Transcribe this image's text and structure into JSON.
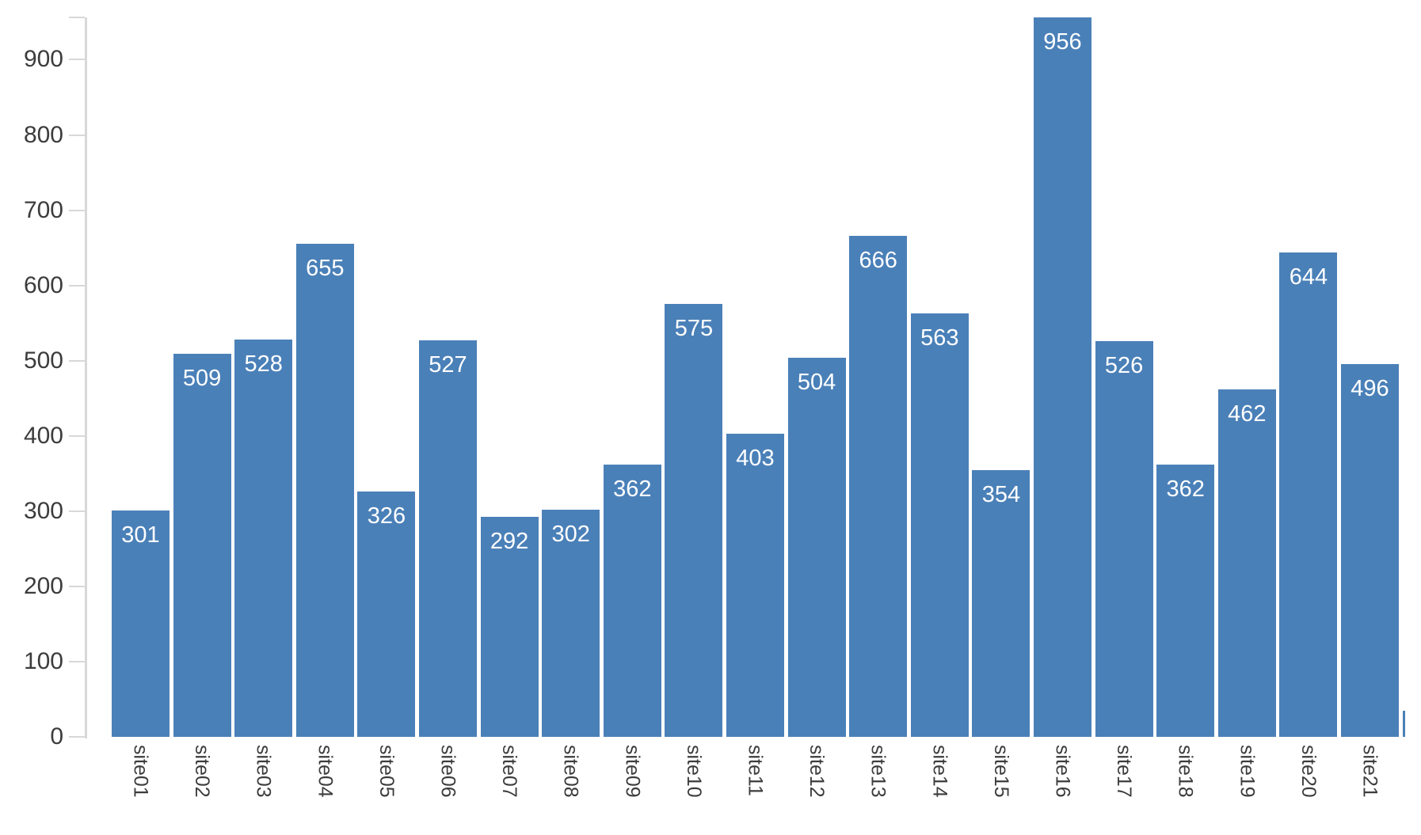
{
  "chart_data": {
    "type": "bar",
    "title": "",
    "xlabel": "",
    "ylabel": "",
    "categories": [
      "site01",
      "site02",
      "site03",
      "site04",
      "site05",
      "site06",
      "site07",
      "site08",
      "site09",
      "site10",
      "site11",
      "site12",
      "site13",
      "site14",
      "site15",
      "site16",
      "site17",
      "site18",
      "site19",
      "site20",
      "site21"
    ],
    "values": [
      301,
      509,
      528,
      655,
      326,
      527,
      292,
      302,
      362,
      575,
      403,
      504,
      666,
      563,
      354,
      956,
      526,
      362,
      462,
      644,
      496
    ],
    "yticks": [
      0,
      100,
      200,
      300,
      400,
      500,
      600,
      700,
      800,
      900
    ],
    "ylim": [
      0,
      956
    ],
    "grid": false,
    "legend": null,
    "bar_value_labels_shown": true,
    "x_labels_rotated_90deg": true,
    "clipped_partial_bar": {
      "present": true,
      "estimated_value": 35
    },
    "colors": {
      "bar": "#4a80b8",
      "bar_value_label": "#ffffff",
      "axis_line": "#d8d8d8",
      "tick_label": "#3c3c3c"
    }
  }
}
